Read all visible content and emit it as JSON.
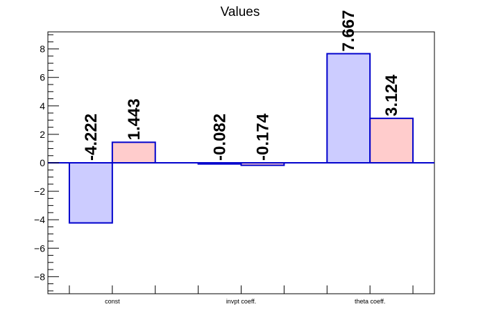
{
  "chart_data": {
    "type": "bar",
    "title": "Values",
    "xlabel": "",
    "ylabel": "",
    "categories": [
      "const",
      "invpt coeff.",
      "theta coeff."
    ],
    "series": [
      {
        "values": [
          -4.222,
          -0.082,
          7.667
        ],
        "labels": [
          "-4.222",
          "-0.082",
          "7.667"
        ],
        "fill": "#ccccff",
        "stroke": "#0000cc"
      },
      {
        "values": [
          1.443,
          -0.174,
          3.124
        ],
        "labels": [
          "1.443",
          "-0.174",
          "3.124"
        ],
        "fill": "#ffcccc",
        "stroke": "#0000cc"
      }
    ],
    "ylim": [
      -9.2,
      9.2
    ],
    "yticks": [
      -8,
      -6,
      -4,
      -2,
      0,
      2,
      4,
      6,
      8
    ],
    "yticklabels": [
      "−8",
      "−6",
      "−4",
      "−2",
      "0",
      "2",
      "4",
      "6",
      "8"
    ],
    "grid": false,
    "zero_line_color": "#0000cc"
  }
}
